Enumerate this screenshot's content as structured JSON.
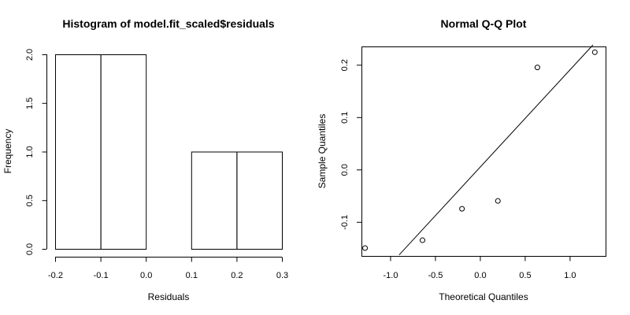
{
  "chart_data": [
    {
      "type": "bar",
      "title": "Histogram of model.fit_scaled$residuals",
      "xlabel": "Residuals",
      "ylabel": "Frequency",
      "bins": [
        {
          "start": -0.2,
          "end": -0.1,
          "count": 2
        },
        {
          "start": -0.1,
          "end": 0.0,
          "count": 2
        },
        {
          "start": 0.0,
          "end": 0.1,
          "count": 0
        },
        {
          "start": 0.1,
          "end": 0.2,
          "count": 1
        },
        {
          "start": 0.2,
          "end": 0.3,
          "count": 1
        }
      ],
      "xlim": [
        -0.2,
        0.3
      ],
      "ylim": [
        0,
        2
      ],
      "xticks": [
        "-0.2",
        "-0.1",
        "0.0",
        "0.1",
        "0.2",
        "0.3"
      ],
      "yticks": [
        "0.0",
        "0.5",
        "1.0",
        "1.5",
        "2.0"
      ],
      "grid": false
    },
    {
      "type": "scatter",
      "title": "Normal Q-Q Plot",
      "xlabel": "Theoretical Quantiles",
      "ylabel": "Sample Quantiles",
      "points": [
        {
          "x": -1.28,
          "y": -0.15
        },
        {
          "x": -0.64,
          "y": -0.135
        },
        {
          "x": -0.2,
          "y": -0.075
        },
        {
          "x": 0.2,
          "y": -0.06
        },
        {
          "x": 0.64,
          "y": 0.195
        },
        {
          "x": 1.28,
          "y": 0.224
        }
      ],
      "qqline": {
        "x1": -0.9,
        "y1": -0.163,
        "x2": 1.26,
        "y2": 0.238
      },
      "xlim": [
        -1.32,
        1.4
      ],
      "ylim": [
        -0.165,
        0.235
      ],
      "xticks": [
        -1.0,
        -0.5,
        0.0,
        0.5,
        1.0
      ],
      "yticks": [
        -0.1,
        0.0,
        0.1,
        0.2
      ],
      "xtick_labels": [
        "-1.0",
        "-0.5",
        "0.0",
        "0.5",
        "1.0"
      ],
      "ytick_labels": [
        "-0.1",
        "0.0",
        "0.1",
        "0.2"
      ],
      "grid": false
    }
  ]
}
